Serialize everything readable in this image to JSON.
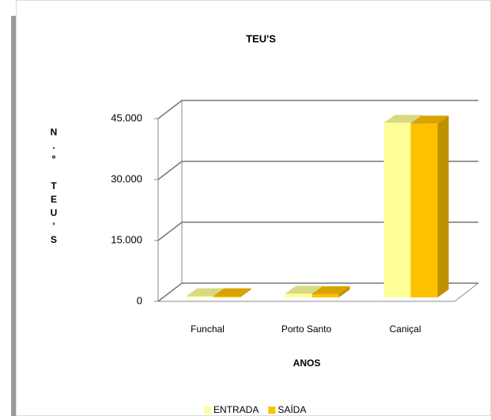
{
  "chart_data": {
    "type": "bar3d",
    "title": "TEU'S",
    "x_label": "ANOS",
    "y_label": "N.º TEU'S",
    "categories": [
      "Funchal",
      "Porto Santo",
      "Caniçal"
    ],
    "series": [
      {
        "name": "ENTRADA",
        "color": "#ffff99",
        "values": [
          300,
          900,
          43000
        ]
      },
      {
        "name": "SAÍDA",
        "color": "#ffc000",
        "values": [
          300,
          800,
          42800
        ]
      }
    ],
    "ylim": [
      0,
      45000
    ],
    "yticks": [
      0,
      {
        "value": 15000,
        "label": "15.000"
      },
      {
        "value": 30000,
        "label": "30.000"
      },
      {
        "value": 45000,
        "label": "45.000"
      }
    ],
    "grid": true,
    "legend": "bottom"
  }
}
